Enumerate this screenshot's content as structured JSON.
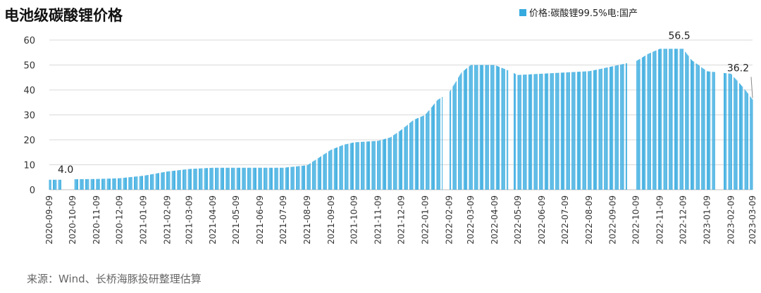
{
  "title": "电池级碳酸锂价格",
  "source": "来源：Wind、长桥海豚投研整理估算",
  "colors": {
    "bar": "#35aadf",
    "grid": "#d9d9d9",
    "axis": "#bfbfbf"
  },
  "chart_data": {
    "type": "bar",
    "title": "电池级碳酸锂价格",
    "xlabel": "",
    "ylabel": "",
    "ylim": [
      0,
      60
    ],
    "yticks": [
      "0",
      "10",
      "20",
      "30",
      "40",
      "50",
      "60"
    ],
    "grid": true,
    "legend_position": "top-right",
    "x_range": [
      "2020-09-09",
      "2023-03-09"
    ],
    "xtick_labels": [
      "2020-09-09",
      "2020-10-09",
      "2020-11-09",
      "2020-12-09",
      "2021-01-09",
      "2021-02-09",
      "2021-03-09",
      "2021-04-09",
      "2021-05-09",
      "2021-06-09",
      "2021-07-09",
      "2021-08-09",
      "2021-09-09",
      "2021-10-09",
      "2021-11-09",
      "2021-12-09",
      "2022-01-09",
      "2022-02-09",
      "2022-03-09",
      "2022-04-09",
      "2022-05-09",
      "2022-06-09",
      "2022-07-09",
      "2022-08-09",
      "2022-09-09",
      "2022-10-09",
      "2022-11-09",
      "2022-12-09",
      "2023-01-09",
      "2023-02-09",
      "2023-03-09"
    ],
    "series": [
      {
        "name": "价格:碳酸锂99.5%电:国产",
        "points": [
          [
            "2020-09-09",
            4.0
          ],
          [
            "2020-10-09",
            4.0
          ],
          [
            "2020-10-12",
            4.2
          ],
          [
            "2020-11-09",
            4.3
          ],
          [
            "2020-12-09",
            4.6
          ],
          [
            "2021-01-09",
            5.6
          ],
          [
            "2021-02-09",
            7.3
          ],
          [
            "2021-03-09",
            8.3
          ],
          [
            "2021-04-09",
            8.8
          ],
          [
            "2021-05-09",
            8.8
          ],
          [
            "2021-06-09",
            8.8
          ],
          [
            "2021-07-09",
            8.8
          ],
          [
            "2021-08-09",
            9.8
          ],
          [
            "2021-08-25",
            13.0
          ],
          [
            "2021-09-09",
            16.0
          ],
          [
            "2021-09-25",
            18.0
          ],
          [
            "2021-10-09",
            19.0
          ],
          [
            "2021-11-09",
            19.6
          ],
          [
            "2021-11-25",
            21.0
          ],
          [
            "2021-12-09",
            24.0
          ],
          [
            "2021-12-25",
            28.0
          ],
          [
            "2022-01-09",
            30.0
          ],
          [
            "2022-01-25",
            36.0
          ],
          [
            "2022-02-09",
            39.0
          ],
          [
            "2022-02-25",
            47.0
          ],
          [
            "2022-03-09",
            50.0
          ],
          [
            "2022-04-09",
            50.0
          ],
          [
            "2022-04-25",
            48.0
          ],
          [
            "2022-05-09",
            46.0
          ],
          [
            "2022-06-09",
            46.5
          ],
          [
            "2022-07-09",
            47.0
          ],
          [
            "2022-08-09",
            47.5
          ],
          [
            "2022-08-25",
            48.5
          ],
          [
            "2022-09-09",
            49.5
          ],
          [
            "2022-10-09",
            51.5
          ],
          [
            "2022-10-25",
            54.5
          ],
          [
            "2022-11-09",
            56.5
          ],
          [
            "2022-12-09",
            56.5
          ],
          [
            "2022-12-20",
            52.0
          ],
          [
            "2023-01-09",
            47.5
          ],
          [
            "2023-02-09",
            46.5
          ],
          [
            "2023-02-25",
            41.0
          ],
          [
            "2023-03-09",
            36.2
          ]
        ]
      }
    ],
    "gaps": [
      [
        "2020-09-25",
        "2020-10-11"
      ],
      [
        "2022-02-01",
        "2022-02-09"
      ],
      [
        "2022-04-27",
        "2022-05-03"
      ],
      [
        "2022-09-28",
        "2022-10-08"
      ],
      [
        "2023-01-20",
        "2023-01-30"
      ]
    ],
    "data_labels": [
      {
        "date": "2020-09-09",
        "value": 4.0,
        "text": "4.0"
      },
      {
        "date": "2022-11-25",
        "value": 56.5,
        "text": "56.5"
      },
      {
        "date": "2023-03-09",
        "value": 36.2,
        "text": "36.2"
      }
    ]
  }
}
